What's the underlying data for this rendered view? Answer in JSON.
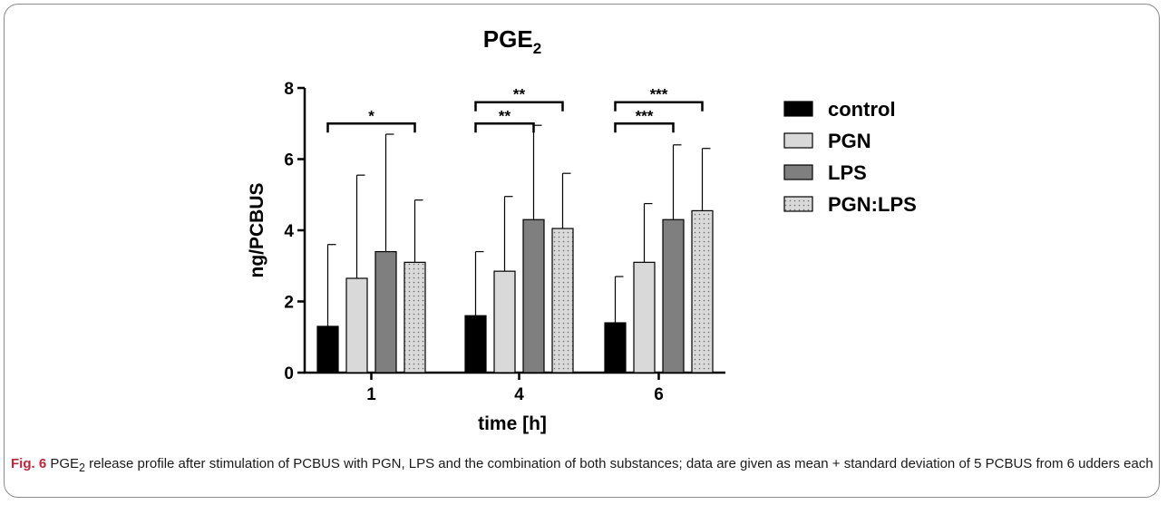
{
  "chart_data": {
    "type": "bar",
    "title_main": "PGE",
    "title_sub": "2",
    "xlabel": "time [h]",
    "ylabel": "ng/PCBUS",
    "ylim": [
      0,
      8
    ],
    "yticks": [
      0,
      2,
      4,
      6,
      8
    ],
    "categories": [
      "1",
      "4",
      "6"
    ],
    "legend_position": "right",
    "series": [
      {
        "name": "control",
        "fill": "#000000",
        "pattern": "solid",
        "values": [
          1.3,
          1.6,
          1.4
        ],
        "errors": [
          2.3,
          1.8,
          1.3
        ]
      },
      {
        "name": "PGN",
        "fill": "#d9d9d9",
        "pattern": "solid",
        "values": [
          2.65,
          2.85,
          3.1
        ],
        "errors": [
          2.9,
          2.1,
          1.65
        ]
      },
      {
        "name": "LPS",
        "fill": "#7f7f7f",
        "pattern": "solid",
        "values": [
          3.4,
          4.3,
          4.3
        ],
        "errors": [
          3.3,
          2.65,
          2.1
        ]
      },
      {
        "name": "PGN:LPS",
        "fill": "#d9d9d9",
        "pattern": "dots",
        "values": [
          3.1,
          4.05,
          4.55
        ],
        "errors": [
          1.75,
          1.55,
          1.75
        ]
      }
    ],
    "significance": [
      {
        "category": 0,
        "from_series": 0,
        "to_series": 3,
        "label": "*",
        "y": 7.0
      },
      {
        "category": 1,
        "from_series": 0,
        "to_series": 2,
        "label": "**",
        "y": 7.0
      },
      {
        "category": 1,
        "from_series": 0,
        "to_series": 3,
        "label": "**",
        "y": 7.6
      },
      {
        "category": 2,
        "from_series": 0,
        "to_series": 2,
        "label": "***",
        "y": 7.0
      },
      {
        "category": 2,
        "from_series": 0,
        "to_series": 3,
        "label": "***",
        "y": 7.6
      }
    ]
  },
  "caption": {
    "label": "Fig. 6",
    "pre": " PGE",
    "sub": "2",
    "text": " release profile after stimulation of PCBUS with PGN, LPS and the combination of both substances; data are given as mean + standard deviation of 5 PCBUS from 6 udders each"
  }
}
